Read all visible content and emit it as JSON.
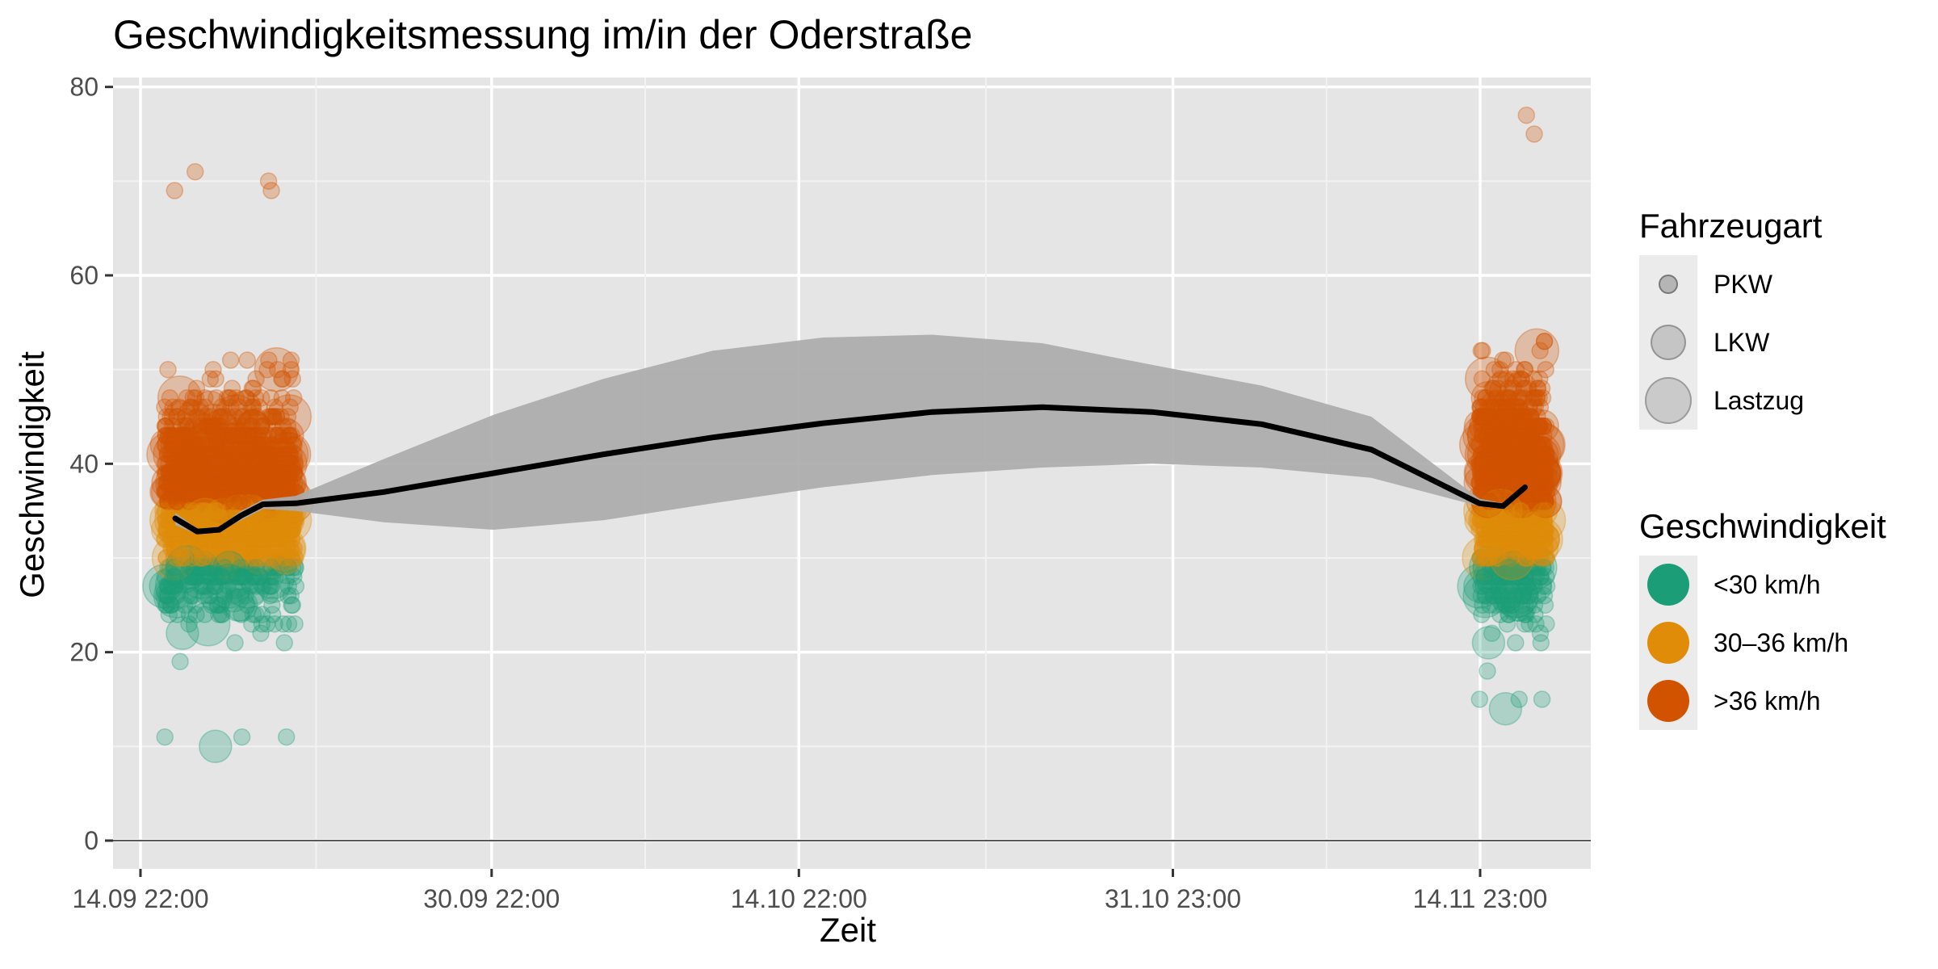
{
  "chart_data": {
    "type": "scatter",
    "title": "Geschwindigkeitsmessung im/in der Oderstraße",
    "xlabel": "Zeit",
    "ylabel": "Geschwindigkeit",
    "x_axis": {
      "type": "datetime",
      "range": [
        "2023-09-13T16:00",
        "2023-11-20T00:00"
      ],
      "tick_labels": [
        {
          "label": "14.09 22:00",
          "value": "2023-09-14T22:00"
        },
        {
          "label": "30.09 22:00",
          "value": "2023-09-30T22:00"
        },
        {
          "label": "14.10 22:00",
          "value": "2023-10-14T22:00"
        },
        {
          "label": "31.10 23:00",
          "value": "2023-10-31T23:00"
        },
        {
          "label": "14.11 23:00",
          "value": "2023-11-14T23:00"
        }
      ]
    },
    "ylim": [
      -3,
      81
    ],
    "y_ticks": [
      0,
      20,
      40,
      60,
      80
    ],
    "grid": true,
    "measurement_periods": [
      {
        "start": "2023-09-16T00:00",
        "end": "2023-09-22T00:00"
      },
      {
        "start": "2023-11-14T22:00",
        "end": "2023-11-18T00:00"
      }
    ],
    "speed_range_observed": {
      "period1": [
        9,
        71
      ],
      "period2": [
        13,
        77
      ]
    },
    "speed_classes": [
      {
        "label": "<30 km/h",
        "range": [
          0,
          30
        ],
        "color": "#1b9e77"
      },
      {
        "label": "30–36 km/h",
        "range": [
          30,
          36
        ],
        "color": "#e08c09"
      },
      {
        "label": ">36 km/h",
        "range": [
          36,
          100
        ],
        "color": "#d15300"
      }
    ],
    "vehicle_types": [
      {
        "label": "PKW",
        "size": "small"
      },
      {
        "label": "LKW",
        "size": "medium"
      },
      {
        "label": "Lastzug",
        "size": "large"
      }
    ],
    "trend": {
      "x": [
        "2023-09-16T12:00",
        "2023-09-17T12:00",
        "2023-09-18T12:00",
        "2023-09-19T12:00",
        "2023-09-20T12:00",
        "2023-09-22T00:00",
        "2023-09-26T00:00",
        "2023-10-01T00:00",
        "2023-10-06T00:00",
        "2023-10-11T00:00",
        "2023-10-16T00:00",
        "2023-10-21T00:00",
        "2023-10-26T00:00",
        "2023-10-31T00:00",
        "2023-11-05T00:00",
        "2023-11-10T00:00",
        "2023-11-14T22:00",
        "2023-11-16T00:00",
        "2023-11-17T00:00"
      ],
      "y": [
        34.2,
        32.8,
        33.0,
        34.5,
        35.7,
        35.8,
        37.0,
        39.0,
        41.0,
        42.8,
        44.3,
        45.5,
        46.0,
        45.5,
        44.2,
        41.5,
        35.8,
        35.5,
        37.5
      ],
      "band_lower": [
        33.5,
        32.5,
        32.8,
        34.0,
        35.2,
        35.0,
        33.8,
        33.0,
        34.0,
        35.8,
        37.5,
        38.8,
        39.6,
        40.0,
        39.6,
        38.5,
        35.5,
        35.2,
        37.2
      ],
      "band_upper": [
        34.8,
        33.1,
        33.3,
        35.0,
        36.2,
        36.6,
        40.5,
        45.2,
        49.0,
        52.0,
        53.4,
        53.7,
        52.8,
        50.5,
        48.3,
        45.0,
        36.3,
        35.8,
        37.8
      ],
      "color": "#000000",
      "band_color": "#ababab"
    }
  },
  "legend": {
    "vehicle_title": "Fahrzeugart",
    "vehicle_items": [
      "PKW",
      "LKW",
      "Lastzug"
    ],
    "speed_title": "Geschwindigkeit",
    "speed_items": [
      "<30 km/h",
      "30–36 km/h",
      ">36 km/h"
    ]
  }
}
